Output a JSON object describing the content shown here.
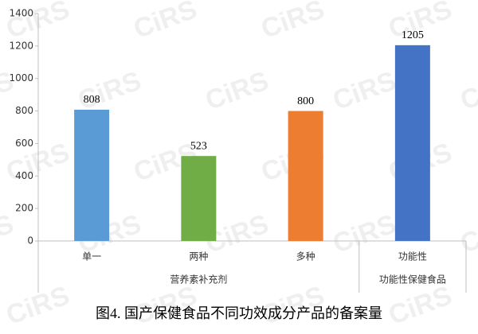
{
  "chart_data": {
    "type": "bar",
    "caption": "图4. 国产保健食品不同功效成分产品的备案量",
    "watermark": "CiRS",
    "categories": [
      "单一",
      "两种",
      "多种",
      "功能性"
    ],
    "group": [
      "营养素补充剂",
      "营养素补充剂",
      "营养素补充剂",
      "功能性保健食品"
    ],
    "values": [
      808,
      523,
      800,
      1205
    ],
    "colors": [
      "#5b9bd5",
      "#70ad47",
      "#ed7d31",
      "#4472c4"
    ],
    "ylim": [
      0,
      1400
    ],
    "yticks": [
      0,
      200,
      400,
      600,
      800,
      1000,
      1200,
      1400
    ],
    "grid": false
  }
}
